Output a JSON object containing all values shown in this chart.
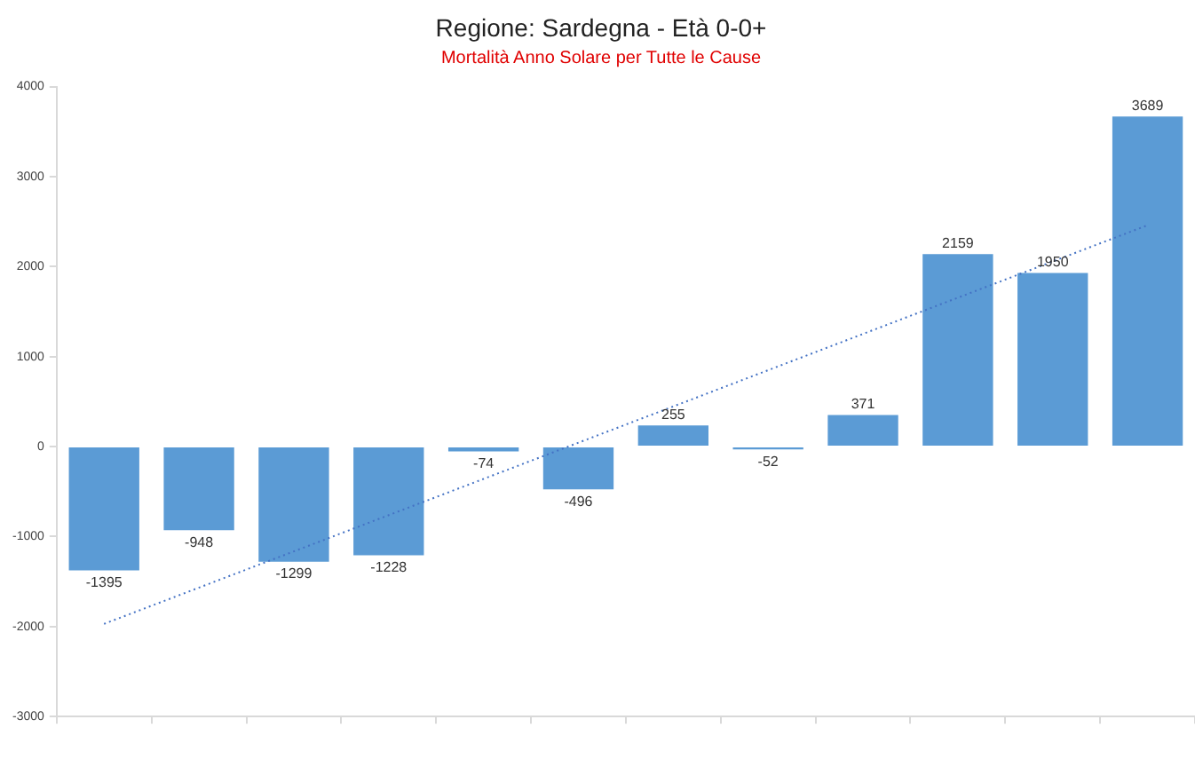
{
  "chart_data": {
    "type": "bar",
    "title": "Regione: Sardegna - Età 0-0+",
    "subtitle": "Mortalità Anno Solare per Tutte le Cause",
    "categories": [
      null,
      null,
      null,
      null,
      null,
      null,
      null,
      null,
      null,
      null,
      null,
      null
    ],
    "series": [
      {
        "color": "#5b9bd5",
        "values": [
          -1395,
          -948,
          -1299,
          -1228,
          -74,
          -496,
          255,
          -52,
          371,
          2159,
          1950,
          3689
        ],
        "value_labels": [
          "-1395",
          "-948",
          "-1299",
          "-1228",
          "-74",
          "-496",
          "255",
          "-52",
          "371",
          "2159",
          "1950",
          "3689"
        ]
      },
      {
        "type": "line",
        "color": "#4472c4",
        "line_style": "dotted",
        "marker": "none",
        "values": [
          -1970,
          null,
          null,
          null,
          null,
          null,
          null,
          null,
          null,
          null,
          null,
          2460
        ]
      }
    ],
    "ylim": [
      -3000,
      4000
    ],
    "yticks": [
      -3000,
      -2000,
      -1000,
      0,
      1000,
      2000,
      3000,
      4000
    ],
    "grid": false,
    "legend": false
  }
}
